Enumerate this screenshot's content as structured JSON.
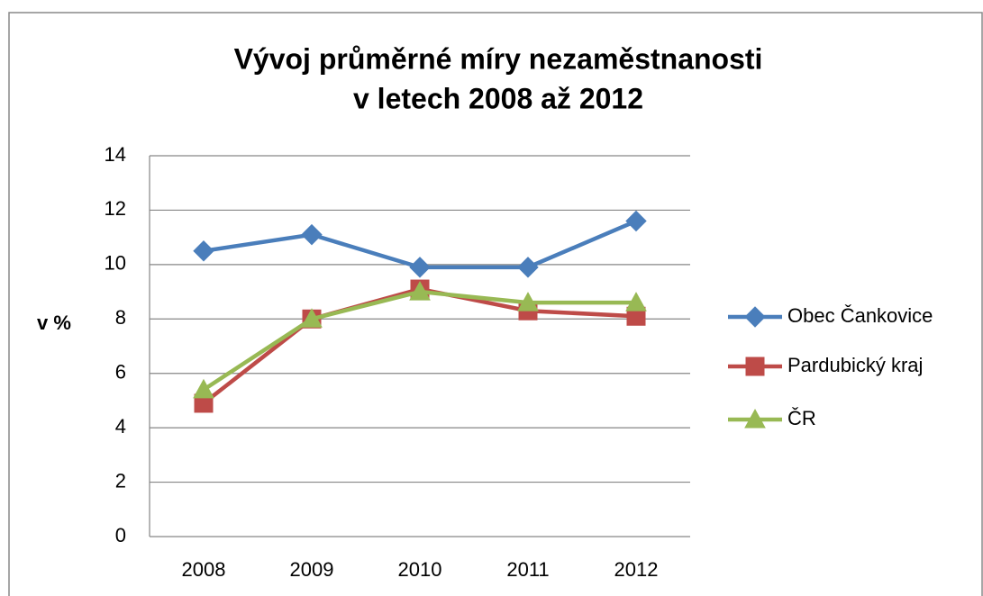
{
  "chart_data": {
    "type": "line",
    "title": [
      "Vývoj průměrné míry nezaměstnanosti",
      "v letech 2008 až 2012"
    ],
    "y_label": "v %",
    "categories": [
      "2008",
      "2009",
      "2010",
      "2011",
      "2012"
    ],
    "series": [
      {
        "name": "Obec Čankovice",
        "color": "#4a7ebb",
        "marker": "diamond",
        "values": [
          10.5,
          11.1,
          9.9,
          9.9,
          11.6
        ]
      },
      {
        "name": "Pardubický kraj",
        "color": "#be4b48",
        "marker": "square",
        "values": [
          4.9,
          8.0,
          9.1,
          8.3,
          8.1
        ]
      },
      {
        "name": "ČR",
        "color": "#98b954",
        "marker": "triangle",
        "values": [
          5.4,
          8.0,
          9.0,
          8.6,
          8.6
        ]
      }
    ],
    "ylim": [
      0,
      14
    ],
    "yticks": [
      0,
      2,
      4,
      6,
      8,
      10,
      12,
      14
    ],
    "grid": true,
    "legend": "right"
  }
}
